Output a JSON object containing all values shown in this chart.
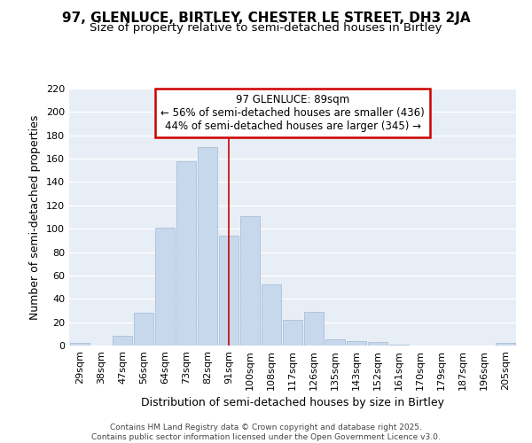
{
  "title": "97, GLENLUCE, BIRTLEY, CHESTER LE STREET, DH3 2JA",
  "subtitle": "Size of property relative to semi-detached houses in Birtley",
  "xlabel": "Distribution of semi-detached houses by size in Birtley",
  "ylabel": "Number of semi-detached properties",
  "bar_color": "#c8d8ec",
  "bar_edge_color": "#a8c0d8",
  "bg_color": "#e8eef6",
  "categories": [
    "29sqm",
    "38sqm",
    "47sqm",
    "56sqm",
    "64sqm",
    "73sqm",
    "82sqm",
    "91sqm",
    "100sqm",
    "108sqm",
    "117sqm",
    "126sqm",
    "135sqm",
    "143sqm",
    "152sqm",
    "161sqm",
    "170sqm",
    "179sqm",
    "187sqm",
    "196sqm",
    "205sqm"
  ],
  "values": [
    2,
    0,
    8,
    28,
    101,
    158,
    170,
    94,
    111,
    52,
    22,
    29,
    5,
    4,
    3,
    1,
    0,
    0,
    0,
    0,
    2
  ],
  "ylim": [
    0,
    220
  ],
  "yticks": [
    0,
    20,
    40,
    60,
    80,
    100,
    120,
    140,
    160,
    180,
    200,
    220
  ],
  "marker_bin_index": 7,
  "annotation_title": "97 GLENLUCE: 89sqm",
  "annotation_line1": "← 56% of semi-detached houses are smaller (436)",
  "annotation_line2": "44% of semi-detached houses are larger (345) →",
  "vline_color": "#cc0000",
  "annotation_box_edge": "#cc0000",
  "footer1": "Contains HM Land Registry data © Crown copyright and database right 2025.",
  "footer2": "Contains public sector information licensed under the Open Government Licence v3.0.",
  "title_fontsize": 11,
  "subtitle_fontsize": 9.5,
  "tick_fontsize": 8,
  "label_fontsize": 9,
  "annot_fontsize": 8.5
}
